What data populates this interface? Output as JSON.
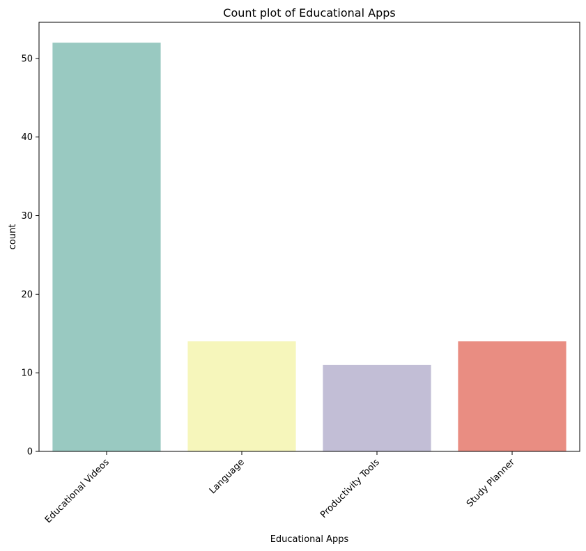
{
  "chart_data": {
    "type": "bar",
    "title": "Count plot of Educational Apps",
    "xlabel": "Educational Apps",
    "ylabel": "count",
    "categories": [
      "Educational Videos",
      "Language",
      "Productivity Tools",
      "Study Planner"
    ],
    "values": [
      52,
      14,
      11,
      14
    ],
    "colors": [
      "#99c9c1",
      "#f6f6bb",
      "#c2bed6",
      "#e98d82"
    ],
    "ylim": [
      0,
      54.6
    ],
    "yticks": [
      0,
      10,
      20,
      30,
      40,
      50
    ],
    "grid": false,
    "legend": "none"
  }
}
